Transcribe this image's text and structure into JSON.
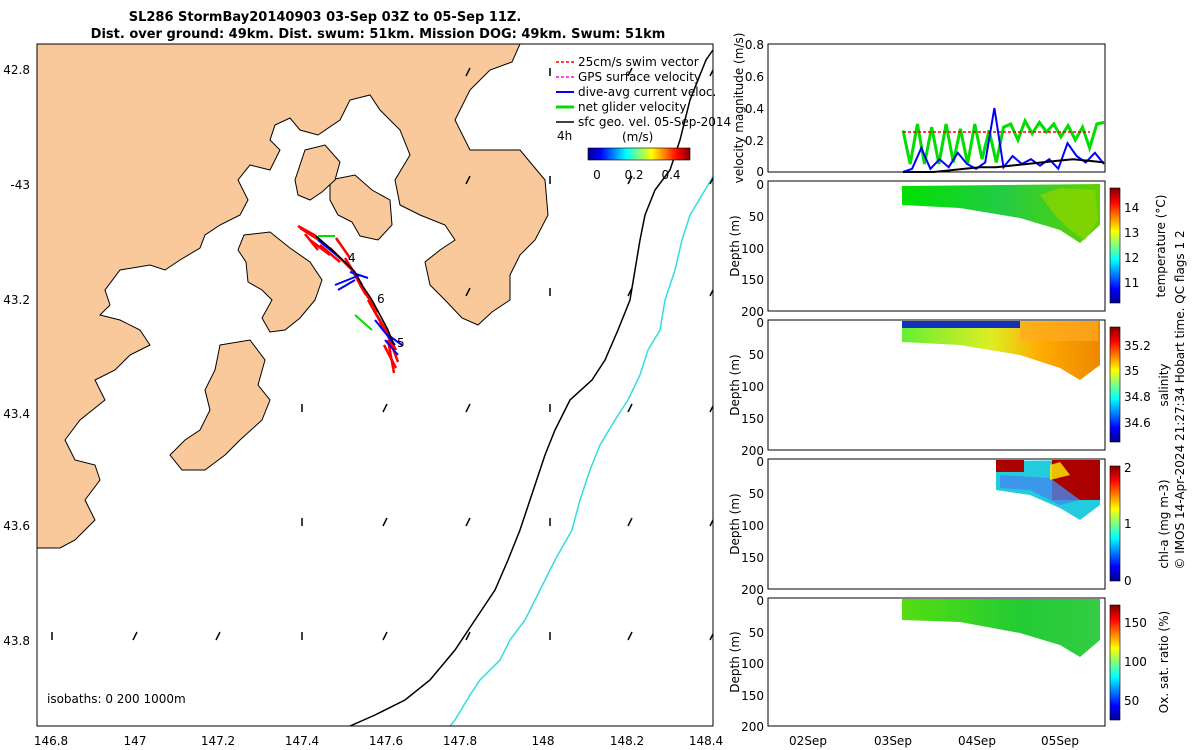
{
  "header": {
    "title_line1": "SL286 StormBay20140903 03-Sep 03Z to 05-Sep 11Z.",
    "title_line2": "Dist. over ground: 49km. Dist. swum: 51km. Mission DOG: 49km. Swum: 51km"
  },
  "map": {
    "lon_ticks": [
      "146.8",
      "147",
      "147.2",
      "147.4",
      "147.6",
      "147.8",
      "148",
      "148.2",
      "148.4"
    ],
    "lat_ticks": [
      "42.8",
      "-43",
      "43.2",
      "43.4",
      "43.6",
      "43.8"
    ],
    "legend": [
      {
        "label": "25cm/s swim vector",
        "color": "#ff0000",
        "style": "dashed"
      },
      {
        "label": "GPS surface velocity",
        "color": "#ff00ff",
        "style": "dashed"
      },
      {
        "label": "dive-avg current veloc.",
        "color": "#0000ff",
        "style": "solid"
      },
      {
        "label": "net glider velocity",
        "color": "#00dd00",
        "style": "solid"
      },
      {
        "label": "sfc geo. vel. 05-Sep-2014",
        "color": "#000000",
        "style": "solid"
      }
    ],
    "scale_label": "4h",
    "colorbar_title": "(m/s)",
    "colorbar_ticks": [
      "0",
      "0.2",
      "0.4"
    ],
    "track_labels": [
      "4",
      "6",
      "5"
    ],
    "isobaths_label": "isobaths: 0   200  1000m",
    "land_color": "#f9c99b",
    "isobath_200_color": "#000000",
    "isobath_1000_color": "#33dddd"
  },
  "chart_data": [
    {
      "type": "line",
      "ylabel": "velocity magnitude (m/s)",
      "ylim": [
        0,
        0.8
      ],
      "yticks": [
        "0",
        "0.2",
        "0.4",
        "0.6",
        "0.8"
      ],
      "series": [
        {
          "color": "#00dd00",
          "values": [
            0.26,
            0.05,
            0.3,
            0.05,
            0.28,
            0.05,
            0.3,
            0.06,
            0.27,
            0.05,
            0.3,
            0.08,
            0.26,
            0.06,
            0.28,
            0.3,
            0.2,
            0.32,
            0.24,
            0.31,
            0.25,
            0.3,
            0.22,
            0.29,
            0.2,
            0.28,
            0.15,
            0.3,
            0.31
          ]
        },
        {
          "color": "#ff0000",
          "values": [
            0.25,
            0.25,
            0.25,
            0.25,
            0.25,
            0.25,
            0.25,
            0.25,
            0.25,
            0.25,
            0.25,
            0.25,
            0.25,
            0.25,
            0.25,
            0.25,
            0.25,
            0.25,
            0.25
          ]
        },
        {
          "color": "#0000ff",
          "values": [
            0.0,
            0.02,
            0.15,
            0.02,
            0.08,
            0.03,
            0.12,
            0.05,
            0.02,
            0.06,
            0.4,
            0.03,
            0.1,
            0.05,
            0.08,
            0.04,
            0.08,
            0.02,
            0.18,
            0.1,
            0.06,
            0.12,
            0.05
          ]
        },
        {
          "color": "#000000",
          "values": [
            0.0,
            0.0,
            0.0,
            0.01,
            0.02,
            0.03,
            0.03,
            0.04,
            0.05,
            0.06,
            0.07,
            0.08,
            0.07,
            0.06
          ]
        }
      ]
    },
    {
      "type": "heatmap",
      "ylabel": "Depth (m)",
      "clabel": "temperature (°C)",
      "ylim": [
        200,
        0
      ],
      "yticks": [
        "0",
        "50",
        "100",
        "150",
        "200"
      ],
      "cticks": [
        "11",
        "12",
        "13",
        "14"
      ],
      "xticks": [
        "02Sep",
        "03Sep",
        "04Sep",
        "05Sep"
      ]
    },
    {
      "type": "heatmap",
      "ylabel": "Depth (m)",
      "clabel": "salinity",
      "ylim": [
        200,
        0
      ],
      "yticks": [
        "0",
        "50",
        "100",
        "150",
        "200"
      ],
      "cticks": [
        "34.6",
        "34.8",
        "35",
        "35.2"
      ],
      "xticks": [
        "02Sep",
        "03Sep",
        "04Sep",
        "05Sep"
      ]
    },
    {
      "type": "heatmap",
      "ylabel": "Depth (m)",
      "clabel": "chl-a (mg m-3)",
      "ylim": [
        200,
        0
      ],
      "yticks": [
        "0",
        "50",
        "100",
        "150",
        "200"
      ],
      "cticks": [
        "0",
        "1",
        "2"
      ],
      "xticks": [
        "02Sep",
        "03Sep",
        "04Sep",
        "05Sep"
      ]
    },
    {
      "type": "heatmap",
      "ylabel": "Depth (m)",
      "clabel": "Ox. sat. ratio (%)",
      "ylim": [
        200,
        0
      ],
      "yticks": [
        "0",
        "50",
        "100",
        "150",
        "200"
      ],
      "cticks": [
        "50",
        "100",
        "150"
      ],
      "xticks": [
        "02Sep",
        "03Sep",
        "04Sep",
        "05Sep"
      ]
    }
  ],
  "footer": {
    "credit": "© IMOS 14-Apr-2024 21:27:34 Hobart time. QC flags 1  2"
  }
}
